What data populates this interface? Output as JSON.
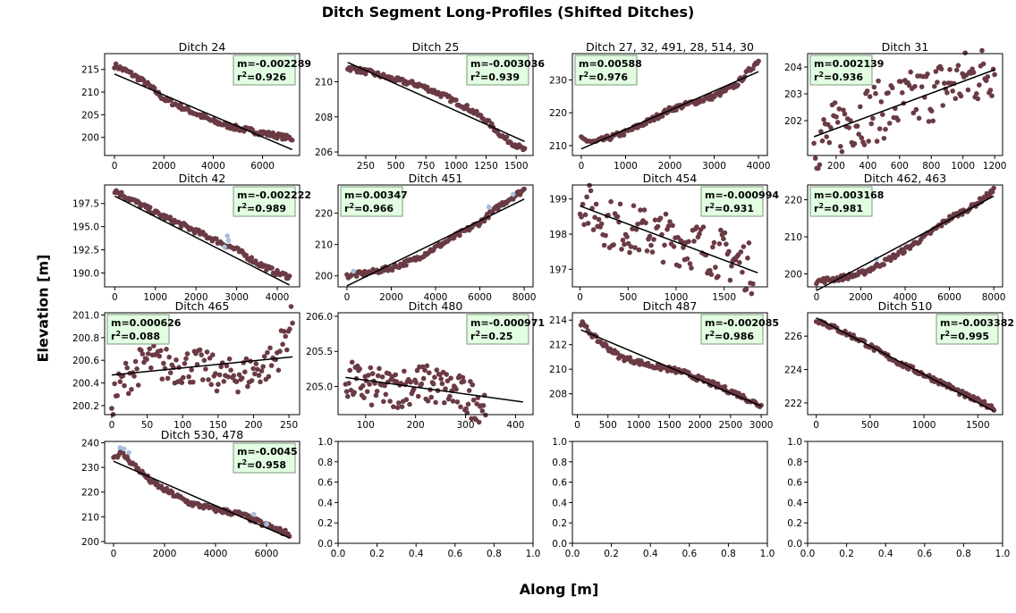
{
  "figure": {
    "title": "Ditch Segment Long-Profiles (Shifted Ditches)",
    "ylabel": "Elevation [m]",
    "xlabel": "Along [m]"
  },
  "colors": {
    "points": "#6b3b44",
    "outlier": "#a8bfdc",
    "fit": "#000000",
    "box_fill": "#e2fde2",
    "box_edge": "#7a9a7a"
  },
  "chart_data": [
    {
      "type": "scatter",
      "title": "Ditch 24",
      "xlim": [
        -400,
        7500
      ],
      "ylim": [
        196,
        218.5
      ],
      "xticks": [
        0,
        2000,
        4000,
        6000
      ],
      "yticks": [
        200,
        205,
        210,
        215
      ],
      "profile": [
        [
          0,
          215.9
        ],
        [
          500,
          214.6
        ],
        [
          1000,
          213
        ],
        [
          1500,
          211
        ],
        [
          2000,
          208.5
        ],
        [
          3000,
          206
        ],
        [
          4000,
          203.5
        ],
        [
          5000,
          202
        ],
        [
          6000,
          201
        ],
        [
          7200,
          199.7
        ]
      ],
      "fit": [
        [
          0,
          214
        ],
        [
          7200,
          197.3
        ]
      ],
      "slope": "m=-0.002289",
      "r2": "0.926",
      "box": "right",
      "outliers": []
    },
    {
      "type": "scatter",
      "title": "Ditch 25",
      "xlim": [
        20,
        1640
      ],
      "ylim": [
        205.8,
        211.6
      ],
      "xticks": [
        250,
        500,
        750,
        1000,
        1250,
        1500
      ],
      "xticklabels": [
        "250",
        "500",
        "750",
        "1000",
        "1250",
        "1500"
      ],
      "yticks": [
        206,
        208,
        210
      ],
      "profile": [
        [
          100,
          210.8
        ],
        [
          300,
          210.5
        ],
        [
          500,
          210.1
        ],
        [
          700,
          209.8
        ],
        [
          900,
          209.2
        ],
        [
          1100,
          208.5
        ],
        [
          1250,
          207.8
        ],
        [
          1400,
          206.8
        ],
        [
          1570,
          206.1
        ]
      ],
      "fit": [
        [
          100,
          211.1
        ],
        [
          1570,
          206.6
        ]
      ],
      "slope": "m=-0.003036",
      "r2": "0.939",
      "box": "right",
      "outliers": []
    },
    {
      "type": "scatter",
      "title": "Ditch 27, 32, 491, 28, 514, 30",
      "xlim": [
        -200,
        4200
      ],
      "ylim": [
        207,
        238
      ],
      "xticks": [
        0,
        1000,
        2000,
        3000,
        4000
      ],
      "yticks": [
        210,
        220,
        230
      ],
      "profile": [
        [
          0,
          212
        ],
        [
          300,
          211
        ],
        [
          1000,
          214
        ],
        [
          1600,
          218
        ],
        [
          2000,
          221
        ],
        [
          2500,
          223
        ],
        [
          3000,
          225
        ],
        [
          3500,
          228.5
        ],
        [
          4000,
          236
        ]
      ],
      "fit": [
        [
          0,
          209
        ],
        [
          4000,
          232.5
        ]
      ],
      "slope": "m=0.00588",
      "r2": "0.976",
      "box": "left",
      "outliers": []
    },
    {
      "type": "scatter",
      "title": "Ditch 31",
      "xlim": [
        20,
        1250
      ],
      "ylim": [
        200.7,
        204.5
      ],
      "xticks": [
        200,
        400,
        600,
        800,
        1000,
        1200
      ],
      "yticks": [
        202,
        203,
        204
      ],
      "profile": [
        [
          60,
          201.2
        ],
        [
          150,
          201.4
        ],
        [
          250,
          201.9
        ],
        [
          350,
          202.2
        ],
        [
          500,
          202.4
        ],
        [
          700,
          202.8
        ],
        [
          900,
          203.3
        ],
        [
          1100,
          203.7
        ],
        [
          1200,
          204
        ]
      ],
      "fit": [
        [
          60,
          201.4
        ],
        [
          1200,
          203.9
        ]
      ],
      "slope": "m=0.002139",
      "r2": "0.936",
      "box": "left",
      "noise": 0.3,
      "outliers": []
    },
    {
      "type": "scatter",
      "title": "Ditch 42",
      "xlim": [
        -250,
        4550
      ],
      "ylim": [
        188.5,
        199.5
      ],
      "xticks": [
        0,
        1000,
        2000,
        3000,
        4000
      ],
      "yticks": [
        190,
        192.5,
        195,
        197.5
      ],
      "yticklabels": [
        "190.0",
        "192.5",
        "195.0",
        "197.5"
      ],
      "profile": [
        [
          0,
          198.9
        ],
        [
          500,
          197.7
        ],
        [
          1000,
          196.5
        ],
        [
          1500,
          195.5
        ],
        [
          2000,
          194.5
        ],
        [
          2500,
          193.5
        ],
        [
          3000,
          192.5
        ],
        [
          3500,
          191.1
        ],
        [
          4000,
          190
        ],
        [
          4300,
          189.6
        ]
      ],
      "fit": [
        [
          0,
          198.3
        ],
        [
          4300,
          188.7
        ]
      ],
      "slope": "m=-0.002222",
      "r2": "0.989",
      "box": "right",
      "outliers": [
        [
          2770,
          194
        ],
        [
          2800,
          193.5
        ],
        [
          2700,
          192.8
        ]
      ]
    },
    {
      "type": "scatter",
      "title": "Ditch 451",
      "xlim": [
        -400,
        8400
      ],
      "ylim": [
        196.5,
        229
      ],
      "xticks": [
        0,
        2000,
        4000,
        6000,
        8000
      ],
      "yticks": [
        200,
        210,
        220
      ],
      "profile": [
        [
          0,
          200
        ],
        [
          1000,
          201
        ],
        [
          2000,
          202.5
        ],
        [
          3000,
          205
        ],
        [
          4000,
          209
        ],
        [
          5000,
          213
        ],
        [
          6000,
          217
        ],
        [
          7000,
          223
        ],
        [
          8000,
          227.5
        ]
      ],
      "fit": [
        [
          0,
          196.8
        ],
        [
          8000,
          224.5
        ]
      ],
      "slope": "m=0.00347",
      "r2": "0.966",
      "box": "left",
      "outliers": [
        [
          300,
          201.5
        ],
        [
          6400,
          222
        ],
        [
          7500,
          226
        ]
      ]
    },
    {
      "type": "scatter",
      "title": "Ditch 454",
      "xlim": [
        -80,
        1950
      ],
      "ylim": [
        196.5,
        199.4
      ],
      "xticks": [
        0,
        500,
        1000,
        1500
      ],
      "yticks": [
        197,
        198,
        199
      ],
      "profile": [
        [
          0,
          199.1
        ],
        [
          100,
          198.7
        ],
        [
          300,
          198.3
        ],
        [
          600,
          198.1
        ],
        [
          900,
          197.9
        ],
        [
          1200,
          197.7
        ],
        [
          1500,
          197.4
        ],
        [
          1800,
          197
        ]
      ],
      "fit": [
        [
          0,
          198.8
        ],
        [
          1850,
          196.9
        ]
      ],
      "slope": "m=-0.000994",
      "r2": "0.931",
      "box": "right",
      "noise": 0.25,
      "outliers": []
    },
    {
      "type": "scatter",
      "title": "Ditch 462, 463",
      "xlim": [
        -400,
        8400
      ],
      "ylim": [
        196.5,
        224
      ],
      "xticks": [
        0,
        2000,
        4000,
        6000,
        8000
      ],
      "yticks": [
        200,
        210,
        220
      ],
      "profile": [
        [
          0,
          198
        ],
        [
          1000,
          198.8
        ],
        [
          2000,
          200
        ],
        [
          3000,
          203
        ],
        [
          4000,
          206.5
        ],
        [
          5000,
          210.5
        ],
        [
          6000,
          215
        ],
        [
          7000,
          218
        ],
        [
          8000,
          222.5
        ]
      ],
      "fit": [
        [
          0,
          195.5
        ],
        [
          8000,
          221
        ]
      ],
      "slope": "m=0.003168",
      "r2": "0.981",
      "box": "left",
      "outliers": [
        [
          2700,
          204
        ]
      ]
    },
    {
      "type": "scatter",
      "title": "Ditch 465",
      "xlim": [
        -10,
        265
      ],
      "ylim": [
        200.12,
        201.02
      ],
      "xticks": [
        0,
        50,
        100,
        150,
        200,
        250
      ],
      "yticks": [
        200.2,
        200.4,
        200.6,
        200.8,
        201
      ],
      "yticklabels": [
        "200.2",
        "200.4",
        "200.6",
        "200.8",
        "201.0"
      ],
      "profile": [
        [
          0,
          200.25
        ],
        [
          20,
          200.45
        ],
        [
          50,
          200.6
        ],
        [
          80,
          200.55
        ],
        [
          120,
          200.55
        ],
        [
          160,
          200.45
        ],
        [
          200,
          200.5
        ],
        [
          230,
          200.6
        ],
        [
          255,
          200.95
        ]
      ],
      "fit": [
        [
          0,
          200.47
        ],
        [
          255,
          200.63
        ]
      ],
      "slope": "m=0.000626",
      "r2": "0.088",
      "box": "left",
      "noise": 0.18,
      "outliers": []
    },
    {
      "type": "scatter",
      "title": "Ditch 480",
      "xlim": [
        45,
        435
      ],
      "ylim": [
        204.6,
        206.05
      ],
      "xticks": [
        100,
        200,
        300,
        400
      ],
      "yticks": [
        205,
        205.5,
        206
      ],
      "yticklabels": [
        "205.0",
        "205.5",
        "206.0"
      ],
      "profile": [
        [
          60,
          205.1
        ],
        [
          100,
          205
        ],
        [
          150,
          204.95
        ],
        [
          200,
          205.05
        ],
        [
          250,
          205
        ],
        [
          300,
          204.85
        ],
        [
          340,
          204.75
        ]
      ],
      "fit": [
        [
          60,
          205.13
        ],
        [
          415,
          204.78
        ]
      ],
      "slope": "m=-0.000971",
      "r2": "0.25",
      "box": "right",
      "noise": 0.2,
      "outliers": []
    },
    {
      "type": "scatter",
      "title": "Ditch 487",
      "xlim": [
        -80,
        3100
      ],
      "ylim": [
        206.3,
        214.6
      ],
      "xticks": [
        0,
        500,
        1000,
        1500,
        2000,
        2500,
        3000
      ],
      "yticks": [
        208,
        210,
        212,
        214
      ],
      "profile": [
        [
          60,
          213.8
        ],
        [
          300,
          212.5
        ],
        [
          700,
          211
        ],
        [
          1200,
          210.3
        ],
        [
          1700,
          209.8
        ],
        [
          2200,
          208.8
        ],
        [
          2600,
          208
        ],
        [
          3000,
          207
        ]
      ],
      "fit": [
        [
          60,
          213.2
        ],
        [
          3000,
          207
        ]
      ],
      "slope": "m=-0.002085",
      "r2": "0.986",
      "box": "right",
      "outliers": []
    },
    {
      "type": "scatter",
      "title": "Ditch 510",
      "xlim": [
        -80,
        1730
      ],
      "ylim": [
        221.3,
        227.4
      ],
      "xticks": [
        0,
        500,
        1000,
        1500
      ],
      "yticks": [
        222,
        224,
        226
      ],
      "profile": [
        [
          0,
          227
        ],
        [
          200,
          226.4
        ],
        [
          400,
          225.8
        ],
        [
          600,
          225
        ],
        [
          800,
          224.3
        ],
        [
          1000,
          223.7
        ],
        [
          1200,
          223.1
        ],
        [
          1400,
          222.4
        ],
        [
          1650,
          221.7
        ]
      ],
      "fit": [
        [
          0,
          227.1
        ],
        [
          1650,
          221.5
        ]
      ],
      "slope": "m=-0.003382",
      "r2": "0.995",
      "box": "right",
      "outliers": []
    },
    {
      "type": "scatter",
      "title": "Ditch 530, 478",
      "xlim": [
        -350,
        7300
      ],
      "ylim": [
        199.3,
        240.5
      ],
      "xticks": [
        0,
        2000,
        4000,
        6000
      ],
      "yticks": [
        200,
        210,
        220,
        230,
        240
      ],
      "profile": [
        [
          0,
          234
        ],
        [
          300,
          236
        ],
        [
          600,
          233
        ],
        [
          1000,
          229
        ],
        [
          1500,
          224
        ],
        [
          2000,
          221
        ],
        [
          3000,
          215.5
        ],
        [
          4000,
          213
        ],
        [
          5000,
          211
        ],
        [
          6000,
          206.5
        ],
        [
          6900,
          203
        ]
      ],
      "fit": [
        [
          0,
          232.5
        ],
        [
          6900,
          201.5
        ]
      ],
      "slope": "m=-0.0045",
      "r2": "0.958",
      "box": "right",
      "outliers": [
        [
          250,
          238
        ],
        [
          400,
          237.5
        ],
        [
          600,
          236
        ],
        [
          5500,
          211
        ],
        [
          6000,
          207
        ]
      ]
    },
    {
      "type": "empty",
      "xlim": [
        0,
        1
      ],
      "ylim": [
        0,
        1
      ],
      "xticks": [
        0,
        0.2,
        0.4,
        0.6,
        0.8,
        1
      ],
      "xticklabels": [
        "0.0",
        "0.2",
        "0.4",
        "0.6",
        "0.8",
        "1.0"
      ],
      "yticks": [
        0,
        0.2,
        0.4,
        0.6,
        0.8,
        1
      ],
      "yticklabels": [
        "0.0",
        "0.2",
        "0.4",
        "0.6",
        "0.8",
        "1.0"
      ]
    },
    {
      "type": "empty",
      "xlim": [
        0,
        1
      ],
      "ylim": [
        0,
        1
      ],
      "xticks": [
        0,
        0.2,
        0.4,
        0.6,
        0.8,
        1
      ],
      "xticklabels": [
        "0.0",
        "0.2",
        "0.4",
        "0.6",
        "0.8",
        "1.0"
      ],
      "yticks": [
        0,
        0.2,
        0.4,
        0.6,
        0.8,
        1
      ],
      "yticklabels": [
        "0.0",
        "0.2",
        "0.4",
        "0.6",
        "0.8",
        "1.0"
      ]
    },
    {
      "type": "empty",
      "xlim": [
        0,
        1
      ],
      "ylim": [
        0,
        1
      ],
      "xticks": [
        0,
        0.2,
        0.4,
        0.6,
        0.8,
        1
      ],
      "xticklabels": [
        "0.0",
        "0.2",
        "0.4",
        "0.6",
        "0.8",
        "1.0"
      ],
      "yticks": [
        0,
        0.2,
        0.4,
        0.6,
        0.8,
        1
      ],
      "yticklabels": [
        "0.0",
        "0.2",
        "0.4",
        "0.6",
        "0.8",
        "1.0"
      ]
    }
  ]
}
